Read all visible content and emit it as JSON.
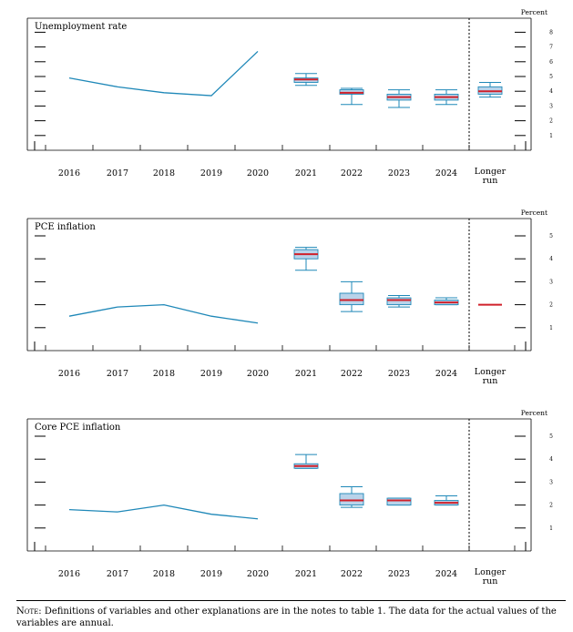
{
  "footnote": {
    "prefix": "Note:",
    "text": " Definitions of variables and other explanations are in the notes to table 1. The data for the actual values of the variables are annual."
  },
  "chart_data": [
    {
      "type": "line",
      "title": "Unemployment rate",
      "unit_label": "Percent",
      "categories": [
        "2016",
        "2017",
        "2018",
        "2019",
        "2020",
        "2021",
        "2022",
        "2023",
        "2024",
        "Longer run"
      ],
      "longer_run_label": [
        "Longer",
        "run"
      ],
      "y_ticks": [
        "1",
        "2",
        "3",
        "4",
        "5",
        "6",
        "7",
        "8"
      ],
      "ylim": [
        0,
        9
      ],
      "history": {
        "x": [
          "2016",
          "2017",
          "2018",
          "2019",
          "2020"
        ],
        "y": [
          4.9,
          4.3,
          3.9,
          3.7,
          6.7
        ]
      },
      "projections": [
        {
          "x": "2021",
          "min": 4.4,
          "q1": 4.6,
          "median": 4.8,
          "q3": 4.9,
          "max": 5.2
        },
        {
          "x": "2022",
          "min": 3.1,
          "q1": 3.8,
          "median": 3.9,
          "q3": 4.1,
          "max": 4.2
        },
        {
          "x": "2023",
          "min": 2.9,
          "q1": 3.4,
          "median": 3.6,
          "q3": 3.8,
          "max": 4.1
        },
        {
          "x": "2024",
          "min": 3.1,
          "q1": 3.4,
          "median": 3.6,
          "q3": 3.8,
          "max": 4.1
        },
        {
          "x": "Longer run",
          "min": 3.6,
          "q1": 3.8,
          "median": 4.0,
          "q3": 4.3,
          "max": 4.6
        }
      ],
      "colors": {
        "history": "#1f88b8",
        "median": "#d0202a",
        "box_fill": "#b9d3ea",
        "whisker": "#1f88b8"
      }
    },
    {
      "type": "line",
      "title": "PCE inflation",
      "unit_label": "Percent",
      "categories": [
        "2016",
        "2017",
        "2018",
        "2019",
        "2020",
        "2021",
        "2022",
        "2023",
        "2024",
        "Longer run"
      ],
      "longer_run_label": [
        "Longer",
        "run"
      ],
      "y_ticks": [
        "1",
        "2",
        "3",
        "4",
        "5"
      ],
      "ylim": [
        0,
        6
      ],
      "history": {
        "x": [
          "2016",
          "2017",
          "2018",
          "2019",
          "2020"
        ],
        "y": [
          1.5,
          1.9,
          2.0,
          1.5,
          1.2
        ]
      },
      "projections": [
        {
          "x": "2021",
          "min": 3.5,
          "q1": 4.0,
          "median": 4.2,
          "q3": 4.4,
          "max": 4.5
        },
        {
          "x": "2022",
          "min": 1.7,
          "q1": 2.0,
          "median": 2.2,
          "q3": 2.5,
          "max": 3.0
        },
        {
          "x": "2023",
          "min": 1.9,
          "q1": 2.0,
          "median": 2.2,
          "q3": 2.3,
          "max": 2.4
        },
        {
          "x": "2024",
          "min": 2.0,
          "q1": 2.0,
          "median": 2.1,
          "q3": 2.2,
          "max": 2.3
        },
        {
          "x": "Longer run",
          "min": 2.0,
          "q1": 2.0,
          "median": 2.0,
          "q3": 2.0,
          "max": 2.0
        }
      ],
      "colors": {
        "history": "#1f88b8",
        "median": "#d0202a",
        "box_fill": "#b9d3ea",
        "whisker": "#1f88b8"
      }
    },
    {
      "type": "line",
      "title": "Core PCE inflation",
      "unit_label": "Percent",
      "categories": [
        "2016",
        "2017",
        "2018",
        "2019",
        "2020",
        "2021",
        "2022",
        "2023",
        "2024",
        "Longer run"
      ],
      "longer_run_label": [
        "Longer",
        "run"
      ],
      "y_ticks": [
        "1",
        "2",
        "3",
        "4",
        "5"
      ],
      "ylim": [
        0,
        6
      ],
      "history": {
        "x": [
          "2016",
          "2017",
          "2018",
          "2019",
          "2020"
        ],
        "y": [
          1.8,
          1.7,
          2.0,
          1.6,
          1.4
        ]
      },
      "projections": [
        {
          "x": "2021",
          "min": 3.6,
          "q1": 3.6,
          "median": 3.7,
          "q3": 3.8,
          "max": 4.2
        },
        {
          "x": "2022",
          "min": 1.9,
          "q1": 2.0,
          "median": 2.2,
          "q3": 2.5,
          "max": 2.8
        },
        {
          "x": "2023",
          "min": 2.0,
          "q1": 2.0,
          "median": 2.2,
          "q3": 2.3,
          "max": 2.3
        },
        {
          "x": "2024",
          "min": 2.0,
          "q1": 2.0,
          "median": 2.1,
          "q3": 2.2,
          "max": 2.4
        },
        {
          "x": "Longer run",
          "min": null,
          "q1": null,
          "median": null,
          "q3": null,
          "max": null
        }
      ],
      "colors": {
        "history": "#1f88b8",
        "median": "#d0202a",
        "box_fill": "#b9d3ea",
        "whisker": "#1f88b8"
      }
    }
  ]
}
